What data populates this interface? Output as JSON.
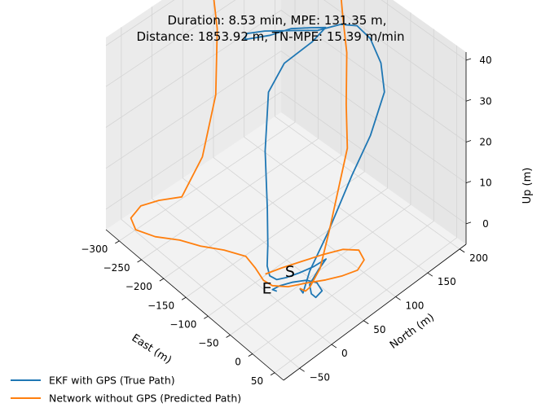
{
  "chart_data": {
    "type": "line",
    "projection": "3d",
    "title_lines": [
      "Duration: 8.53 min, MPE: 131.35 m,",
      "Distance: 1853.92 m, TN-MPE: 15.39 m/min"
    ],
    "xlabel": "East (m)",
    "ylabel": "North (m)",
    "zlabel": "Up (m)",
    "x_ticks": [
      "−300",
      "−250",
      "−200",
      "−150",
      "−100",
      "−50",
      "0",
      "50"
    ],
    "y_ticks": [
      "−50",
      "0",
      "50",
      "100",
      "150",
      "200"
    ],
    "z_ticks": [
      "0",
      "10",
      "20",
      "30",
      "40"
    ],
    "xlim": [
      -330,
      70
    ],
    "ylim": [
      -75,
      210
    ],
    "zlim": [
      -5,
      42
    ],
    "grid": true,
    "legend_position": "bottom-left",
    "start_marker": "S",
    "end_marker": "E",
    "series": [
      {
        "name": "EKF with GPS (True Path)",
        "color": "#1f77b4",
        "points": [
          [
            -15,
            10,
            0
          ],
          [
            -5,
            8,
            0
          ],
          [
            0,
            15,
            5
          ],
          [
            5,
            40,
            12
          ],
          [
            -5,
            85,
            20
          ],
          [
            -20,
            125,
            24
          ],
          [
            -45,
            165,
            28
          ],
          [
            -80,
            185,
            30
          ],
          [
            -110,
            190,
            33
          ],
          [
            -125,
            180,
            36
          ],
          [
            -120,
            150,
            40
          ],
          [
            -135,
            125,
            40
          ],
          [
            -160,
            105,
            40
          ],
          [
            -190,
            80,
            40
          ],
          [
            -205,
            62,
            40
          ],
          [
            -198,
            54,
            40
          ],
          [
            -178,
            80,
            40
          ],
          [
            -160,
            100,
            41
          ],
          [
            -140,
            118,
            41
          ],
          [
            -125,
            130,
            41
          ],
          [
            -130,
            112,
            39
          ],
          [
            -158,
            88,
            34
          ],
          [
            -168,
            70,
            28
          ],
          [
            -145,
            48,
            18
          ],
          [
            -118,
            32,
            8
          ],
          [
            -100,
            20,
            2
          ],
          [
            -82,
            6,
            0
          ],
          [
            -65,
            -2,
            0
          ],
          [
            -52,
            0,
            0
          ],
          [
            -45,
            10,
            0
          ],
          [
            -38,
            26,
            0
          ],
          [
            -32,
            44,
            0
          ],
          [
            -30,
            62,
            0
          ],
          [
            -22,
            44,
            0
          ],
          [
            -10,
            22,
            0
          ],
          [
            5,
            14,
            0
          ],
          [
            15,
            14,
            0
          ],
          [
            12,
            26,
            0
          ],
          [
            -5,
            30,
            0
          ],
          [
            -20,
            24,
            0
          ],
          [
            -32,
            10,
            0
          ],
          [
            -40,
            -4,
            0
          ],
          [
            -42,
            -14,
            0
          ],
          [
            -35,
            -12,
            0
          ]
        ]
      },
      {
        "name": "Network without GPS (Predicted Path)",
        "color": "#ff7f0e",
        "points": [
          [
            -15,
            10,
            0
          ],
          [
            -5,
            12,
            0
          ],
          [
            0,
            15,
            1
          ],
          [
            -5,
            35,
            3
          ],
          [
            -20,
            60,
            8
          ],
          [
            -35,
            85,
            14
          ],
          [
            -50,
            110,
            20
          ],
          [
            -80,
            130,
            26
          ],
          [
            -120,
            160,
            32
          ],
          [
            -150,
            176,
            36
          ],
          [
            -175,
            190,
            40
          ],
          [
            -215,
            203,
            40
          ],
          [
            -255,
            188,
            40
          ],
          [
            -292,
            158,
            40
          ],
          [
            -312,
            132,
            40
          ],
          [
            -328,
            108,
            40
          ],
          [
            -318,
            90,
            38
          ],
          [
            -292,
            78,
            32
          ],
          [
            -268,
            58,
            20
          ],
          [
            -262,
            32,
            8
          ],
          [
            -272,
            6,
            0
          ],
          [
            -290,
            -18,
            0
          ],
          [
            -300,
            -40,
            0
          ],
          [
            -292,
            -62,
            0
          ],
          [
            -270,
            -70,
            0
          ],
          [
            -240,
            -60,
            0
          ],
          [
            -210,
            -42,
            0
          ],
          [
            -180,
            -30,
            0
          ],
          [
            -150,
            -14,
            0
          ],
          [
            -118,
            -2,
            0
          ],
          [
            -92,
            -6,
            0
          ],
          [
            -65,
            -12,
            0
          ],
          [
            -48,
            -10,
            0
          ],
          [
            -30,
            2,
            0
          ],
          [
            -15,
            22,
            0
          ],
          [
            0,
            40,
            0
          ],
          [
            12,
            58,
            0
          ],
          [
            20,
            76,
            0
          ],
          [
            12,
            92,
            0
          ],
          [
            -8,
            98,
            0
          ],
          [
            -26,
            86,
            0
          ],
          [
            -40,
            64,
            0
          ],
          [
            -52,
            40,
            0
          ],
          [
            -64,
            16,
            0
          ],
          [
            -72,
            -4,
            0
          ]
        ]
      }
    ]
  }
}
